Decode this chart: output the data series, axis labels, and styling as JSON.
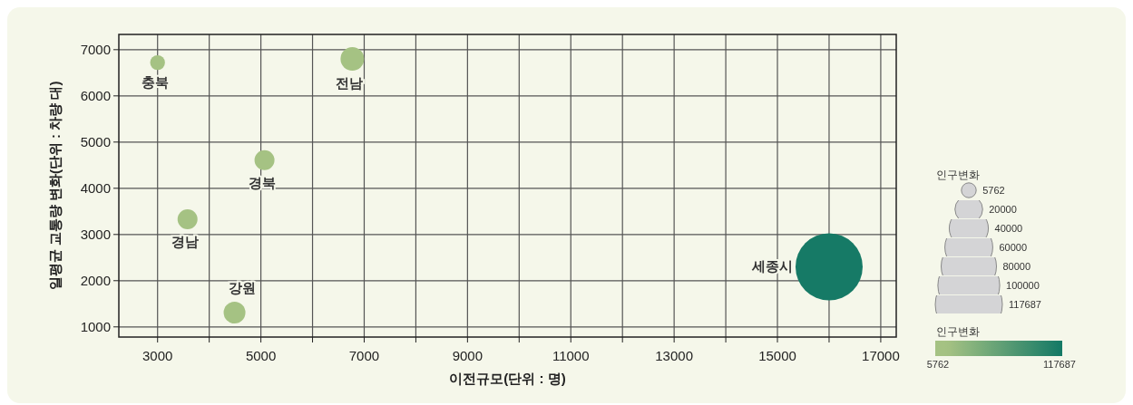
{
  "chart_data": {
    "type": "bubble",
    "xlabel": "이전규모(단위 : 명)",
    "ylabel": "일평균 교통량 변화(단위 : 차량 대)",
    "x": [
      3000,
      6770,
      5070,
      3580,
      4490,
      16000
    ],
    "values": [
      6720,
      6800,
      4610,
      3330,
      1310,
      2300
    ],
    "sizes": [
      5762,
      14500,
      10400,
      10400,
      12400,
      117687
    ],
    "cvalues": [
      5762,
      14500,
      10400,
      10400,
      12400,
      117687
    ],
    "colors": [
      "#a5c283",
      "#a5c283",
      "#a5c283",
      "#a5c283",
      "#a5c283",
      "#167a66"
    ],
    "annotations": [
      {
        "text": "충북",
        "x": 3000,
        "y": 6720
      },
      {
        "text": "전남",
        "x": 6770,
        "y": 6800
      },
      {
        "text": "경북",
        "x": 5070,
        "y": 4610
      },
      {
        "text": "경남",
        "x": 3580,
        "y": 3330
      },
      {
        "text": "강원",
        "x": 4490,
        "y": 1310
      },
      {
        "text": "세종시",
        "x": 16000,
        "y": 2300
      }
    ],
    "xlim": [
      2250,
      17300
    ],
    "ylim": [
      780,
      7330
    ],
    "xticks": [
      3000,
      {
        "value": 4000,
        "label": null
      },
      5000,
      {
        "value": 6000,
        "label": null
      },
      7000,
      {
        "value": 8000,
        "label": null
      },
      9000,
      {
        "value": 10000,
        "label": null
      },
      11000,
      {
        "value": 12000,
        "label": null
      },
      13000,
      {
        "value": 14000,
        "label": null
      },
      15000,
      {
        "value": 16000,
        "label": null
      },
      17000
    ],
    "yticks": [
      1000,
      2000,
      3000,
      4000,
      5000,
      6000,
      7000
    ],
    "grid": true,
    "legend_title": "인구변화",
    "size_legend": [
      5762,
      20000,
      40000,
      60000,
      80000,
      100000,
      117687
    ],
    "clabel": "인구변화",
    "clim": [
      5762,
      117687
    ],
    "cticks": [
      5762,
      117687
    ]
  }
}
